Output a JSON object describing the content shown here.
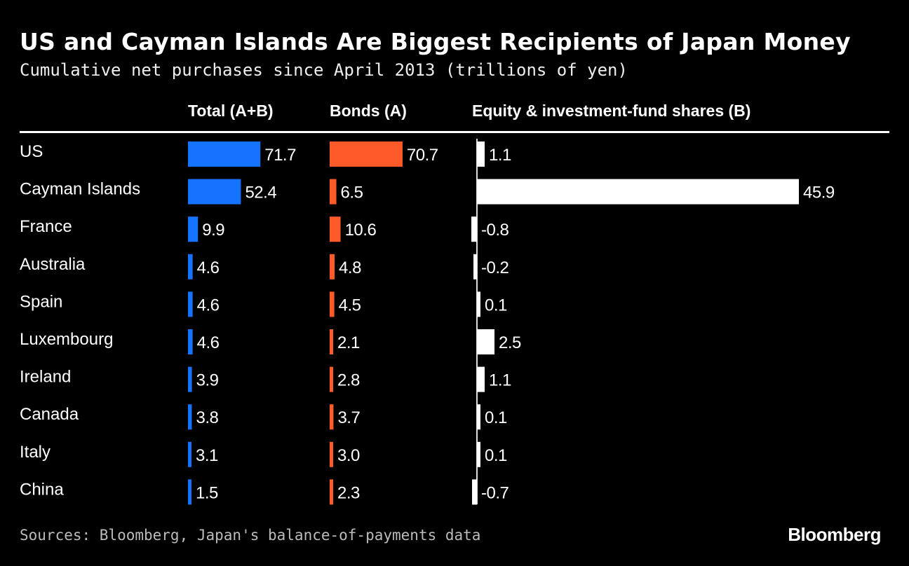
{
  "title": "US and Cayman Islands Are Biggest Recipients of Japan Money",
  "subtitle": "Cumulative net purchases since April 2013 (trillions of yen)",
  "source": "Sources: Bloomberg, Japan's balance-of-payments data",
  "logo": "Bloomberg",
  "colors": {
    "total": "#1673ff",
    "bonds": "#ff5a2a",
    "equity": "#ffffff",
    "background": "#000000"
  },
  "chart_data": {
    "type": "bar",
    "orientation": "horizontal",
    "categories": [
      "US",
      "Cayman Islands",
      "France",
      "Australia",
      "Spain",
      "Luxembourg",
      "Ireland",
      "Canada",
      "Italy",
      "China"
    ],
    "series": [
      {
        "name": "Total (A+B)",
        "values": [
          71.7,
          52.4,
          9.9,
          4.6,
          4.6,
          4.6,
          3.9,
          3.8,
          3.1,
          1.5
        ]
      },
      {
        "name": "Bonds (A)",
        "values": [
          70.7,
          6.5,
          10.6,
          4.8,
          4.5,
          2.1,
          2.8,
          3.7,
          3.0,
          2.3
        ]
      },
      {
        "name": "Equity & investment-fund shares (B)",
        "values": [
          1.1,
          45.9,
          -0.8,
          -0.2,
          0.1,
          2.5,
          1.1,
          0.1,
          0.1,
          -0.7
        ]
      }
    ],
    "grid": false,
    "data_labels": true
  }
}
